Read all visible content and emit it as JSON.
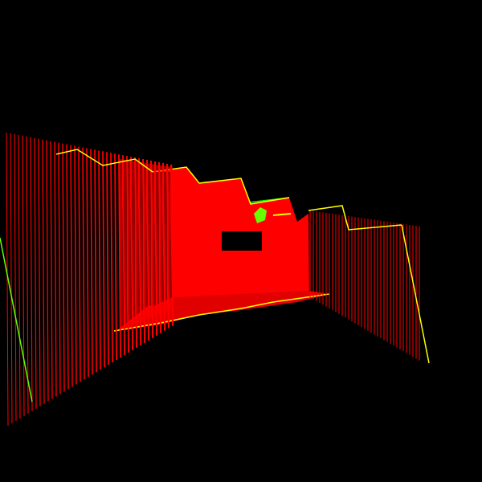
{
  "colors": {
    "background": "#000000",
    "surface": "#ff0000",
    "edge_highlight": "#ffff00",
    "object_highlight": "#00ff00",
    "shade": "#c80000"
  },
  "scene": {
    "description_icon": "pointcloud-wall-render"
  }
}
